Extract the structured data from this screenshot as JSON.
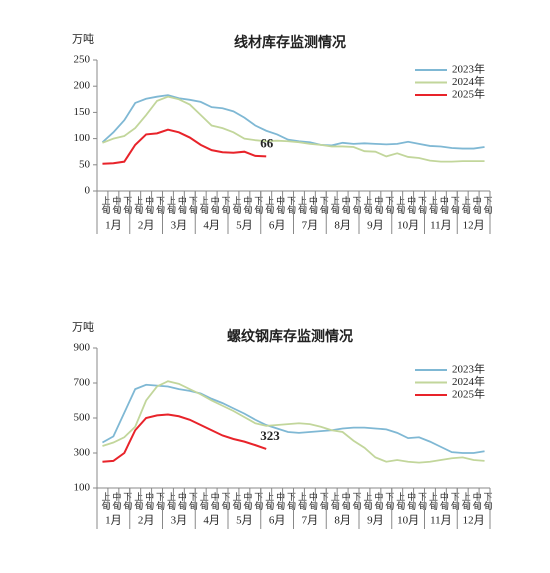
{
  "chart_data": [
    {
      "type": "line",
      "title": "线材库存监测情况",
      "unit": "万吨",
      "categories": [
        "上旬",
        "中旬",
        "下旬",
        "上旬",
        "中旬",
        "下旬",
        "上旬",
        "中旬",
        "下旬",
        "上旬",
        "中旬",
        "下旬",
        "上旬",
        "中旬",
        "下旬",
        "上旬",
        "中旬",
        "下旬",
        "上旬",
        "中旬",
        "下旬",
        "上旬",
        "中旬",
        "下旬",
        "上旬",
        "中旬",
        "下旬",
        "上旬",
        "中旬",
        "下旬",
        "上旬",
        "中旬",
        "下旬",
        "上旬",
        "中旬",
        "下旬"
      ],
      "months": [
        "1月",
        "2月",
        "3月",
        "4月",
        "5月",
        "6月",
        "7月",
        "8月",
        "9月",
        "10月",
        "11月",
        "12月"
      ],
      "ylim": [
        0,
        250
      ],
      "yticks": [
        0,
        50,
        100,
        150,
        200,
        250
      ],
      "legend": "upper right",
      "series": [
        {
          "name": "2023年",
          "color": "#7fb8d4",
          "values": [
            93,
            112,
            135,
            168,
            176,
            180,
            183,
            177,
            174,
            170,
            160,
            158,
            152,
            140,
            125,
            115,
            108,
            98,
            95,
            93,
            88,
            87,
            92,
            90,
            91,
            90,
            89,
            90,
            94,
            90,
            86,
            85,
            82,
            81,
            81,
            84
          ]
        },
        {
          "name": "2024年",
          "color": "#c2d69b",
          "values": [
            92,
            100,
            105,
            120,
            145,
            172,
            180,
            175,
            165,
            145,
            125,
            120,
            112,
            100,
            97,
            95,
            96,
            95,
            93,
            90,
            88,
            85,
            85,
            84,
            76,
            75,
            66,
            72,
            65,
            63,
            58,
            56,
            56,
            57,
            57,
            57
          ]
        },
        {
          "name": "2025年",
          "color": "#e8232a",
          "values": [
            52,
            53,
            56,
            88,
            108,
            110,
            117,
            112,
            102,
            88,
            78,
            74,
            73,
            75,
            67,
            66,
            null,
            null,
            null,
            null,
            null,
            null,
            null,
            null,
            null,
            null,
            null,
            null,
            null,
            null,
            null,
            null,
            null,
            null,
            null,
            null
          ]
        }
      ]
    },
    {
      "type": "line",
      "title": "螺纹钢库存监测情况",
      "unit": "万吨",
      "categories": [
        "上旬",
        "中旬",
        "下旬",
        "上旬",
        "中旬",
        "下旬",
        "上旬",
        "中旬",
        "下旬",
        "上旬",
        "中旬",
        "下旬",
        "上旬",
        "中旬",
        "下旬",
        "上旬",
        "中旬",
        "下旬",
        "上旬",
        "中旬",
        "下旬",
        "上旬",
        "中旬",
        "下旬",
        "上旬",
        "中旬",
        "下旬",
        "上旬",
        "中旬",
        "下旬",
        "上旬",
        "中旬",
        "下旬",
        "上旬",
        "中旬",
        "下旬"
      ],
      "months": [
        "1月",
        "2月",
        "3月",
        "4月",
        "5月",
        "6月",
        "7月",
        "8月",
        "9月",
        "10月",
        "11月",
        "12月"
      ],
      "ylim": [
        100,
        900
      ],
      "yticks": [
        100,
        300,
        500,
        700,
        900
      ],
      "legend": "upper right",
      "series": [
        {
          "name": "2023年",
          "color": "#7fb8d4",
          "values": [
            360,
            395,
            530,
            665,
            690,
            685,
            680,
            665,
            655,
            640,
            610,
            585,
            555,
            525,
            490,
            460,
            440,
            420,
            415,
            420,
            425,
            430,
            440,
            445,
            445,
            440,
            435,
            415,
            385,
            390,
            365,
            335,
            305,
            300,
            300,
            310
          ]
        },
        {
          "name": "2024年",
          "color": "#c2d69b",
          "values": [
            340,
            360,
            390,
            450,
            600,
            680,
            710,
            695,
            665,
            635,
            600,
            570,
            540,
            505,
            470,
            455,
            460,
            465,
            470,
            465,
            450,
            430,
            420,
            370,
            330,
            275,
            250,
            260,
            250,
            245,
            250,
            260,
            270,
            275,
            260,
            255
          ]
        },
        {
          "name": "2025年",
          "color": "#e8232a",
          "values": [
            250,
            255,
            300,
            430,
            500,
            515,
            520,
            510,
            490,
            460,
            430,
            400,
            380,
            365,
            345,
            323,
            null,
            null,
            null,
            null,
            null,
            null,
            null,
            null,
            null,
            null,
            null,
            null,
            null,
            null,
            null,
            null,
            null,
            null,
            null,
            null
          ]
        }
      ]
    }
  ]
}
